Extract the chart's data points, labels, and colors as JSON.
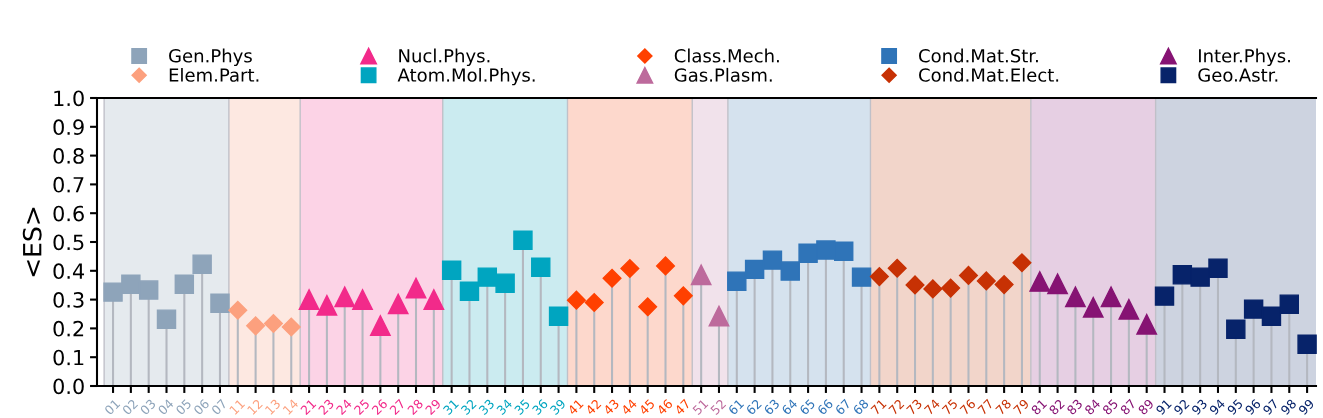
{
  "chart_data": {
    "type": "lollipop",
    "ylabel": "<ES>",
    "categories": [
      "01",
      "02",
      "03",
      "04",
      "05",
      "06",
      "07",
      "11",
      "12",
      "13",
      "14",
      "21",
      "23",
      "24",
      "25",
      "26",
      "27",
      "28",
      "29",
      "31",
      "32",
      "33",
      "34",
      "35",
      "36",
      "39",
      "41",
      "42",
      "43",
      "44",
      "45",
      "46",
      "47",
      "51",
      "52",
      "61",
      "62",
      "63",
      "64",
      "65",
      "66",
      "67",
      "68",
      "71",
      "72",
      "73",
      "74",
      "75",
      "76",
      "77",
      "78",
      "79",
      "81",
      "82",
      "83",
      "84",
      "85",
      "87",
      "89",
      "91",
      "92",
      "93",
      "94",
      "95",
      "96",
      "97",
      "98",
      "99"
    ],
    "ylim": [
      0,
      1.0
    ],
    "yticks": [
      {
        "value": 0,
        "label": "0.0"
      },
      {
        "value": 0.1,
        "label": "0.1"
      },
      {
        "value": 0.2,
        "label": "0.2"
      },
      {
        "value": 0.3,
        "label": "0.3"
      },
      {
        "value": 0.4,
        "label": "0.4"
      },
      {
        "value": 0.5,
        "label": "0.5"
      },
      {
        "value": 0.6,
        "label": "0.6"
      },
      {
        "value": 0.7,
        "label": "0.7"
      },
      {
        "value": 0.8,
        "label": "0.8"
      },
      {
        "value": 0.9,
        "label": "0.9"
      },
      {
        "value": 1.0,
        "label": "1.0"
      }
    ],
    "legend": "top",
    "grid": false,
    "series": [
      {
        "name": "Gen.Phys",
        "color": "#8ea4ba",
        "marker": "square",
        "values": [
          0.326,
          0.353,
          0.333,
          0.232,
          0.353,
          0.423,
          0.287,
          null,
          null,
          null,
          null,
          null,
          null,
          null,
          null,
          null,
          null,
          null,
          null,
          null,
          null,
          null,
          null,
          null,
          null,
          null,
          null,
          null,
          null,
          null,
          null,
          null,
          null,
          null,
          null,
          null,
          null,
          null,
          null,
          null,
          null,
          null,
          null,
          null,
          null,
          null,
          null,
          null,
          null,
          null,
          null,
          null,
          null,
          null,
          null,
          null,
          null,
          null,
          null,
          null,
          null,
          null,
          null,
          null,
          null,
          null,
          null,
          null
        ]
      },
      {
        "name": "Elem.Part.",
        "color": "#fca07e",
        "marker": "diamond",
        "values": [
          null,
          null,
          null,
          null,
          null,
          null,
          null,
          0.263,
          0.209,
          0.217,
          0.205,
          null,
          null,
          null,
          null,
          null,
          null,
          null,
          null,
          null,
          null,
          null,
          null,
          null,
          null,
          null,
          null,
          null,
          null,
          null,
          null,
          null,
          null,
          null,
          null,
          null,
          null,
          null,
          null,
          null,
          null,
          null,
          null,
          null,
          null,
          null,
          null,
          null,
          null,
          null,
          null,
          null,
          null,
          null,
          null,
          null,
          null,
          null,
          null,
          null,
          null,
          null,
          null,
          null,
          null,
          null,
          null,
          null
        ]
      },
      {
        "name": "Nucl.Phys.",
        "color": "#f22a8a",
        "marker": "triangle",
        "values": [
          null,
          null,
          null,
          null,
          null,
          null,
          null,
          null,
          null,
          null,
          null,
          0.3,
          0.28,
          0.31,
          0.3,
          0.21,
          0.285,
          0.34,
          0.3,
          null,
          null,
          null,
          null,
          null,
          null,
          null,
          null,
          null,
          null,
          null,
          null,
          null,
          null,
          null,
          null,
          null,
          null,
          null,
          null,
          null,
          null,
          null,
          null,
          null,
          null,
          null,
          null,
          null,
          null,
          null,
          null,
          null,
          null,
          null,
          null,
          null,
          null,
          null,
          null,
          null,
          null,
          null,
          null,
          null,
          null,
          null,
          null,
          null
        ]
      },
      {
        "name": "Atom.Mol.Phys.",
        "color": "#00a5c0",
        "marker": "square",
        "values": [
          null,
          null,
          null,
          null,
          null,
          null,
          null,
          null,
          null,
          null,
          null,
          null,
          null,
          null,
          null,
          null,
          null,
          null,
          null,
          0.402,
          0.329,
          0.378,
          0.357,
          0.506,
          0.412,
          0.242,
          null,
          null,
          null,
          null,
          null,
          null,
          null,
          null,
          null,
          null,
          null,
          null,
          null,
          null,
          null,
          null,
          null,
          null,
          null,
          null,
          null,
          null,
          null,
          null,
          null,
          null,
          null,
          null,
          null,
          null,
          null,
          null,
          null,
          null,
          null,
          null,
          null,
          null,
          null,
          null,
          null,
          null
        ]
      },
      {
        "name": "Class.Mech.",
        "color": "#ff4000",
        "marker": "diamond",
        "values": [
          null,
          null,
          null,
          null,
          null,
          null,
          null,
          null,
          null,
          null,
          null,
          null,
          null,
          null,
          null,
          null,
          null,
          null,
          null,
          null,
          null,
          null,
          null,
          null,
          null,
          null,
          0.298,
          0.29,
          0.374,
          0.408,
          0.275,
          0.417,
          0.313,
          null,
          null,
          null,
          null,
          null,
          null,
          null,
          null,
          null,
          null,
          null,
          null,
          null,
          null,
          null,
          null,
          null,
          null,
          null,
          null,
          null,
          null,
          null,
          null,
          null,
          null,
          null,
          null,
          null,
          null,
          null,
          null,
          null,
          null,
          null
        ]
      },
      {
        "name": "Gas.Plasm.",
        "color": "#bd6a9c",
        "marker": "triangle",
        "values": [
          null,
          null,
          null,
          null,
          null,
          null,
          null,
          null,
          null,
          null,
          null,
          null,
          null,
          null,
          null,
          null,
          null,
          null,
          null,
          null,
          null,
          null,
          null,
          null,
          null,
          null,
          null,
          null,
          null,
          null,
          null,
          null,
          null,
          0.386,
          0.243,
          null,
          null,
          null,
          null,
          null,
          null,
          null,
          null,
          null,
          null,
          null,
          null,
          null,
          null,
          null,
          null,
          null,
          null,
          null,
          null,
          null,
          null,
          null,
          null,
          null,
          null,
          null,
          null,
          null,
          null,
          null,
          null,
          null
        ]
      },
      {
        "name": "Cond.Mat.Str.",
        "color": "#2f74b8",
        "marker": "square",
        "values": [
          null,
          null,
          null,
          null,
          null,
          null,
          null,
          null,
          null,
          null,
          null,
          null,
          null,
          null,
          null,
          null,
          null,
          null,
          null,
          null,
          null,
          null,
          null,
          null,
          null,
          null,
          null,
          null,
          null,
          null,
          null,
          null,
          null,
          null,
          null,
          0.364,
          0.405,
          0.437,
          0.399,
          0.461,
          0.472,
          0.468,
          0.378,
          null,
          null,
          null,
          null,
          null,
          null,
          null,
          null,
          null,
          null,
          null,
          null,
          null,
          null,
          null,
          null,
          null,
          null,
          null,
          null,
          null,
          null,
          null,
          null,
          null
        ]
      },
      {
        "name": "Cond.Mat.Elect.",
        "color": "#c73104",
        "marker": "diamond",
        "values": [
          null,
          null,
          null,
          null,
          null,
          null,
          null,
          null,
          null,
          null,
          null,
          null,
          null,
          null,
          null,
          null,
          null,
          null,
          null,
          null,
          null,
          null,
          null,
          null,
          null,
          null,
          null,
          null,
          null,
          null,
          null,
          null,
          null,
          null,
          null,
          null,
          null,
          null,
          null,
          null,
          null,
          null,
          null,
          0.38,
          0.409,
          0.351,
          0.337,
          0.34,
          0.384,
          0.365,
          0.352,
          0.428,
          null,
          null,
          null,
          null,
          null,
          null,
          null,
          null,
          null,
          null,
          null,
          null,
          null,
          null,
          null,
          null
        ]
      },
      {
        "name": "Inter.Phys.",
        "color": "#861373",
        "marker": "triangle",
        "values": [
          null,
          null,
          null,
          null,
          null,
          null,
          null,
          null,
          null,
          null,
          null,
          null,
          null,
          null,
          null,
          null,
          null,
          null,
          null,
          null,
          null,
          null,
          null,
          null,
          null,
          null,
          null,
          null,
          null,
          null,
          null,
          null,
          null,
          null,
          null,
          null,
          null,
          null,
          null,
          null,
          null,
          null,
          null,
          null,
          null,
          null,
          null,
          null,
          null,
          null,
          null,
          null,
          0.363,
          0.355,
          0.31,
          0.273,
          0.31,
          0.266,
          0.214,
          null,
          null,
          null,
          null,
          null,
          null,
          null,
          null,
          null
        ]
      },
      {
        "name": "Geo.Astr.",
        "color": "#07236a",
        "marker": "square",
        "values": [
          null,
          null,
          null,
          null,
          null,
          null,
          null,
          null,
          null,
          null,
          null,
          null,
          null,
          null,
          null,
          null,
          null,
          null,
          null,
          null,
          null,
          null,
          null,
          null,
          null,
          null,
          null,
          null,
          null,
          null,
          null,
          null,
          null,
          null,
          null,
          null,
          null,
          null,
          null,
          null,
          null,
          null,
          null,
          null,
          null,
          null,
          null,
          null,
          null,
          null,
          null,
          null,
          null,
          null,
          null,
          null,
          null,
          null,
          null,
          0.312,
          0.386,
          0.378,
          0.409,
          0.197,
          0.267,
          0.242,
          0.284,
          0.145
        ]
      }
    ],
    "bands": [
      {
        "axis": "x",
        "from": "01",
        "to": "07",
        "color": "#e5eaee"
      },
      {
        "axis": "x",
        "from": "11",
        "to": "14",
        "color": "#fde8e1"
      },
      {
        "axis": "x",
        "from": "21",
        "to": "29",
        "color": "#fcd3e6"
      },
      {
        "axis": "x",
        "from": "31",
        "to": "39",
        "color": "#cbebf0"
      },
      {
        "axis": "x",
        "from": "41",
        "to": "47",
        "color": "#fdd8cc"
      },
      {
        "axis": "x",
        "from": "51",
        "to": "52",
        "color": "#f1e2eb"
      },
      {
        "axis": "x",
        "from": "61",
        "to": "68",
        "color": "#d5e2ee"
      },
      {
        "axis": "x",
        "from": "71",
        "to": "79",
        "color": "#f2d5ca"
      },
      {
        "axis": "x",
        "from": "81",
        "to": "89",
        "color": "#e6cfe3"
      },
      {
        "axis": "x",
        "from": "91",
        "to": "99",
        "color": "#cdd3e0"
      }
    ]
  }
}
